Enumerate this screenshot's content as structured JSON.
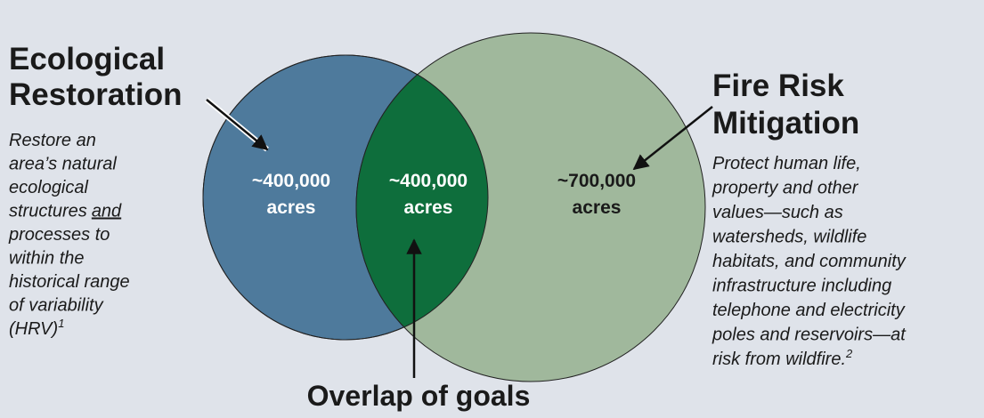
{
  "left": {
    "title_lines": [
      "Ecological",
      "Restoration"
    ],
    "description_lines": [
      "Restore an",
      "area’s natural",
      "ecological",
      {
        "text": "structures",
        "underlined": "and"
      },
      "processes to",
      "within the",
      "historical range",
      "of variability",
      {
        "text": "(HRV)",
        "footnote": "1"
      }
    ],
    "region_value": "~400,000",
    "region_unit": "acres"
  },
  "overlap": {
    "label": "Overlap of goals",
    "region_value": "~400,000",
    "region_unit": "acres"
  },
  "right": {
    "title_lines": [
      "Fire Risk",
      "Mitigation"
    ],
    "description_lines": [
      "Protect human life,",
      "property and other",
      "values—such as",
      "watersheds, wildlife",
      "habitats, and community",
      "infrastructure including",
      "telephone and electricity",
      "poles and reservoirs—at",
      {
        "text": "risk from wildfire.",
        "footnote": "2"
      }
    ],
    "region_value": "~700,000",
    "region_unit": "acres"
  }
}
